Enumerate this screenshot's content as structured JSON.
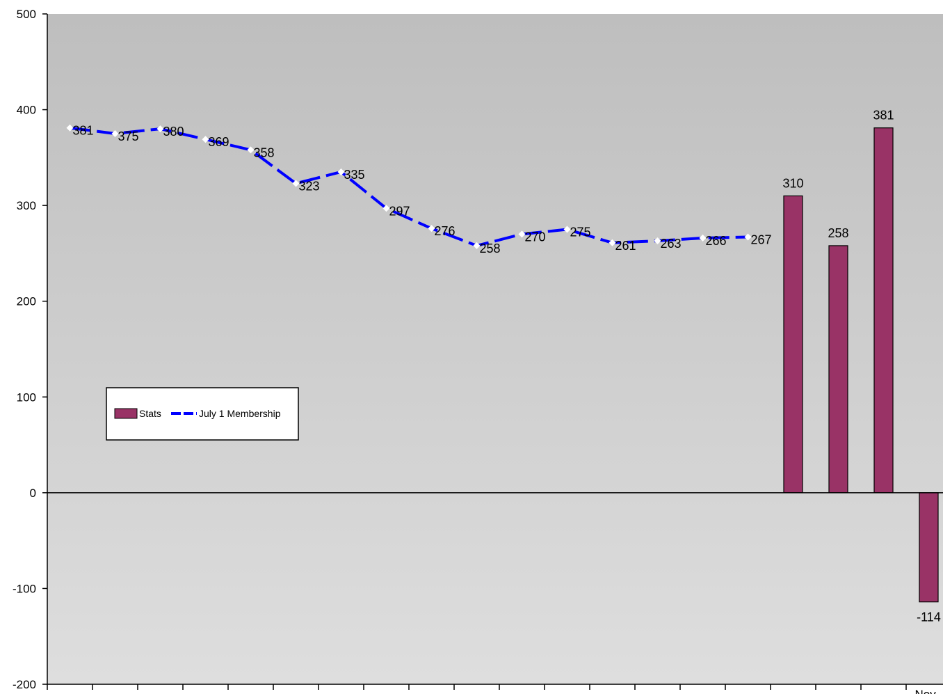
{
  "chart_data": {
    "type": "bar",
    "title": "",
    "xlabel": "",
    "ylabel": "",
    "ylim": [
      -200,
      500
    ],
    "y_ticks": [
      -200,
      -100,
      0,
      100,
      200,
      300,
      400,
      500
    ],
    "y_tick_labels": [
      "-200",
      "-100",
      "0",
      "100",
      "200",
      "300",
      "400",
      "500"
    ],
    "x_tick_labels_visible": [
      "Nov"
    ],
    "grid": false,
    "legend_position": "left-middle",
    "category_count": 20,
    "series": [
      {
        "name": "Stats",
        "kind": "bar",
        "color": "#993366",
        "values": [
          null,
          null,
          null,
          null,
          null,
          null,
          null,
          null,
          null,
          null,
          null,
          null,
          null,
          null,
          null,
          null,
          310,
          258,
          381,
          -114
        ],
        "labels": [
          "",
          "",
          "",
          "",
          "",
          "",
          "",
          "",
          "",
          "",
          "",
          "",
          "",
          "",
          "",
          "",
          "310",
          "258",
          "381",
          "-114"
        ]
      },
      {
        "name": "July 1 Membership",
        "kind": "line",
        "color": "#0000ff",
        "line_style": "dashed",
        "values": [
          381,
          375,
          380,
          369,
          358,
          323,
          335,
          297,
          276,
          258,
          270,
          275,
          261,
          263,
          266,
          267,
          null,
          null,
          null,
          null
        ],
        "labels": [
          "381",
          "375",
          "380",
          "369",
          "358",
          "323",
          "335",
          "297",
          "276",
          "258",
          "270",
          "275",
          "261",
          "263",
          "266",
          "267",
          "",
          "",
          "",
          ""
        ]
      }
    ],
    "legend": {
      "stats_label": "Stats",
      "membership_label": "July 1 Membership"
    },
    "colors": {
      "plot_top": "#bebebe",
      "plot_bottom": "#dedede",
      "bar_fill": "#993366",
      "line": "#0000ff",
      "marker": "#ffffff"
    }
  }
}
